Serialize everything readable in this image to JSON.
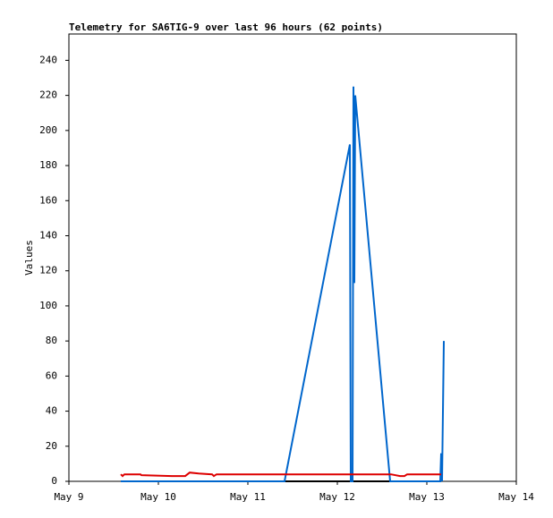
{
  "chart_data": {
    "type": "line",
    "title": "Telemetry for SA6TIG-9 over last 96 hours (62 points)",
    "ylabel": "Values",
    "xlim": [
      9,
      14
    ],
    "xticks": [
      {
        "value": 9,
        "label": "May 9"
      },
      {
        "value": 10,
        "label": "May 10"
      },
      {
        "value": 11,
        "label": "May 11"
      },
      {
        "value": 12,
        "label": "May 12"
      },
      {
        "value": 13,
        "label": "May 13"
      },
      {
        "value": 14,
        "label": "May 14"
      }
    ],
    "ylim": [
      0,
      255
    ],
    "yticks": [
      0,
      20,
      40,
      60,
      80,
      100,
      120,
      140,
      160,
      180,
      200,
      220,
      240
    ],
    "series": [
      {
        "color": "#000000",
        "x": [
          9.58,
          13.16
        ],
        "values": [
          0,
          0
        ]
      },
      {
        "color": "#0066cc",
        "x": [
          9.58,
          11.41,
          12.14,
          12.15,
          12.17,
          12.18,
          12.19,
          12.2,
          12.59,
          13.15,
          13.16,
          13.17,
          13.18,
          13.19
        ],
        "values": [
          0,
          0,
          192,
          0,
          0,
          225,
          113,
          220,
          0,
          0,
          16,
          0,
          40,
          80
        ]
      },
      {
        "color": "#dd0000",
        "x": [
          9.58,
          9.6,
          9.62,
          9.8,
          9.81,
          10.15,
          10.3,
          10.35,
          10.45,
          10.6,
          10.62,
          10.65,
          12.6,
          12.7,
          12.75,
          12.78,
          13.16
        ],
        "values": [
          4,
          3,
          4,
          4,
          3.5,
          3,
          3,
          5,
          4.5,
          4,
          3,
          4,
          4,
          3,
          3,
          4,
          4
        ]
      }
    ]
  }
}
